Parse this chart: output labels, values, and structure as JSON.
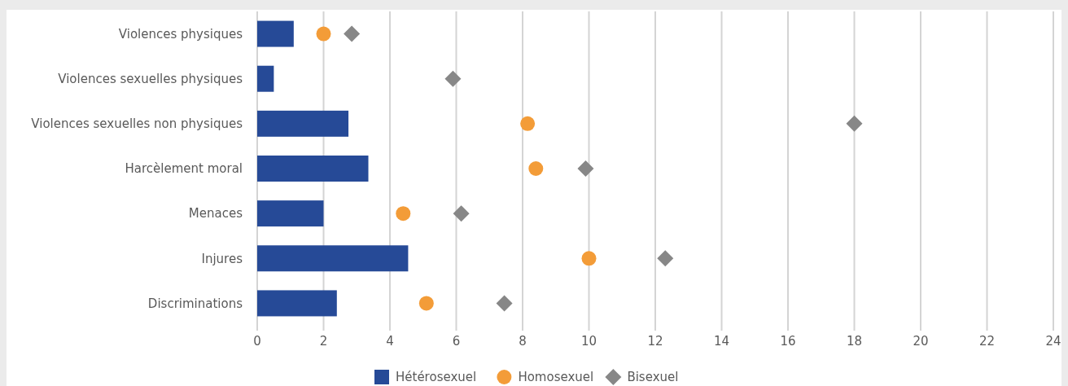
{
  "chart_data": {
    "type": "bar",
    "orientation": "horizontal",
    "categories": [
      "Violences physiques",
      "Violences sexuelles physiques",
      "Violences sexuelles non physiques",
      "Harcèlement moral",
      "Menaces",
      "Injures",
      "Discriminations"
    ],
    "series": [
      {
        "name": "Hétérosexuel",
        "color": "#264a97",
        "values": [
          1.1,
          0.5,
          2.75,
          3.35,
          2.0,
          4.55,
          2.4
        ]
      },
      {
        "name": "Homosexuel",
        "type": "scatter",
        "marker": "circle",
        "color": "#f39c38",
        "values": [
          2.0,
          null,
          8.15,
          8.4,
          4.4,
          10.0,
          5.1
        ]
      },
      {
        "name": "Bisexuel",
        "type": "scatter",
        "marker": "diamond",
        "color": "#878787",
        "values": [
          2.85,
          5.9,
          18.0,
          9.9,
          6.15,
          12.3,
          7.45
        ]
      }
    ],
    "xlim": [
      0,
      24
    ],
    "xticks": [
      0,
      2,
      4,
      6,
      8,
      10,
      12,
      14,
      16,
      18,
      20,
      22,
      24
    ],
    "grid": "x",
    "legend": "bottom"
  }
}
